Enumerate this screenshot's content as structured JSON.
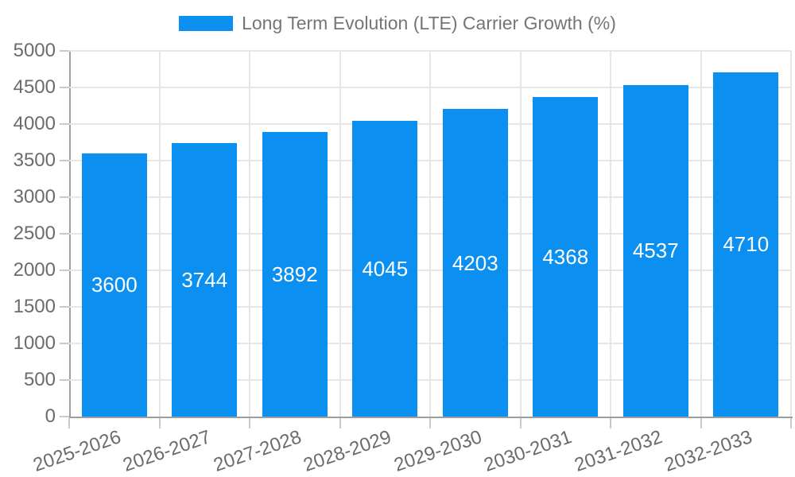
{
  "colors": {
    "bar": "#0b90f2",
    "background": "#ffffff",
    "gridline": "#e6e6e6",
    "axis_line": "#9e9e9e",
    "tick": "#c9c9c9",
    "axis_text": "#6b6b6b",
    "legend_text": "#757575",
    "bar_value_text": "#ffffff"
  },
  "chart_data": {
    "type": "bar",
    "title": "",
    "legend": {
      "position": "top",
      "entries": [
        "Long Term Evolution (LTE) Carrier Growth (%)"
      ]
    },
    "categories": [
      "2025-2026",
      "2026-2027",
      "2027-2028",
      "2028-2029",
      "2029-2030",
      "2030-2031",
      "2031-2032",
      "2032-2033"
    ],
    "series": [
      {
        "name": "Long Term Evolution (LTE) Carrier Growth (%)",
        "values": [
          3600,
          3744,
          3892,
          4045,
          4203,
          4368,
          4537,
          4710
        ]
      }
    ],
    "data_labels": [
      "3600",
      "3744",
      "3892",
      "4045",
      "4203",
      "4368",
      "4537",
      "4710"
    ],
    "data_label_position": "inside-center",
    "xlabel": "",
    "ylabel": "",
    "ylim": [
      0,
      5000
    ],
    "yticks": [
      0,
      500,
      1000,
      1500,
      2000,
      2500,
      3000,
      3500,
      4000,
      4500,
      5000
    ],
    "grid": "both",
    "x_tick_rotation_deg": -19
  }
}
